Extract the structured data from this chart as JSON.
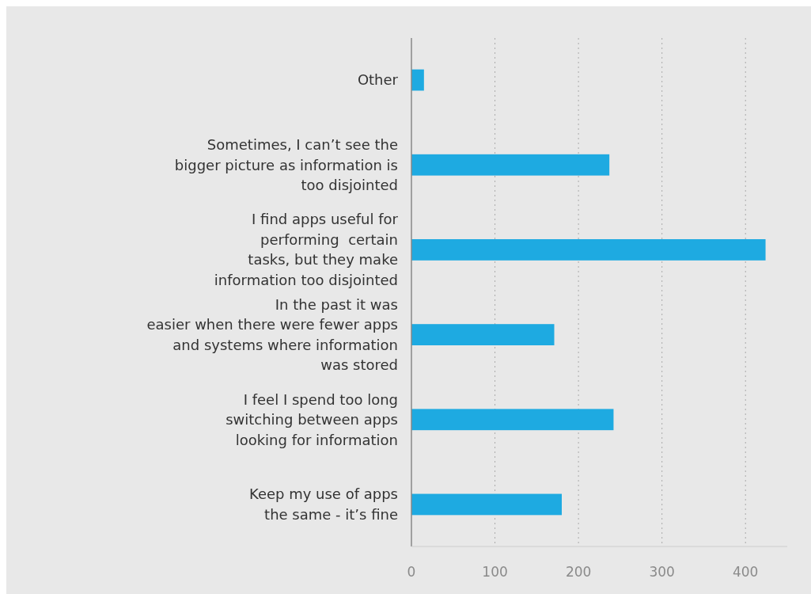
{
  "chart_data": {
    "type": "bar",
    "orientation": "horizontal",
    "categories": [
      "Other",
      "Sometimes, I can’t see the\nbigger picture as information is\ntoo disjointed",
      "I find apps useful for\nperforming  certain\ntasks, but they make\ninformation too disjointed",
      "In the past it was\neasier when there were fewer apps\nand systems where information\nwas stored",
      "I feel I spend too long\nswitching between apps\nlooking for information",
      "Keep my use of apps\nthe same - it’s fine"
    ],
    "values": [
      15,
      237,
      424,
      171,
      242,
      180
    ],
    "color": "#1eaae1",
    "xlim": [
      0,
      450
    ],
    "xticks": [
      0,
      100,
      200,
      300,
      400
    ],
    "grid": "x"
  }
}
